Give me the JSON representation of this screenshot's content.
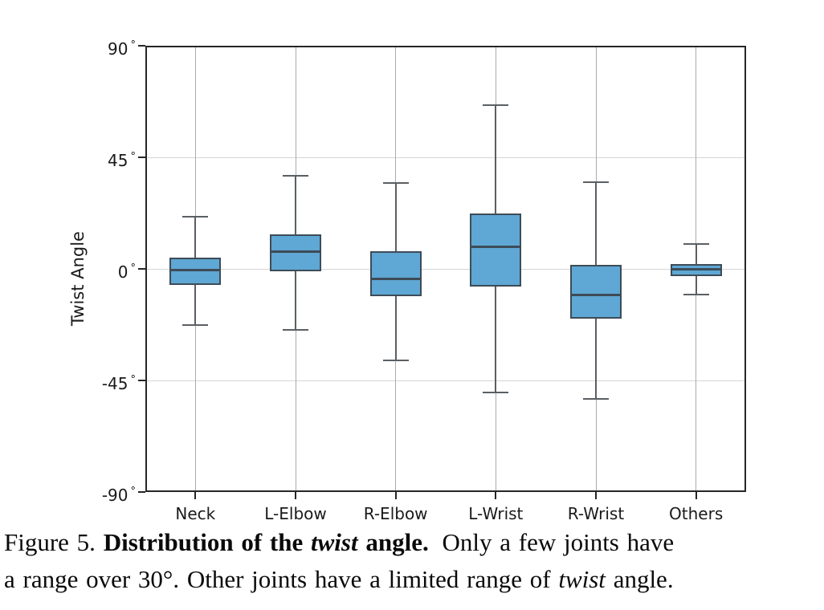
{
  "chart_data": {
    "type": "box",
    "title": "",
    "xlabel": "",
    "ylabel": "Twist Angle",
    "categories": [
      "Neck",
      "L-Elbow",
      "R-Elbow",
      "L-Wrist",
      "R-Wrist",
      "Others"
    ],
    "ylim": [
      -90,
      90
    ],
    "grid": true,
    "legend": false,
    "degree_symbol": "°",
    "yticks": [
      {
        "v": 90,
        "t": "90"
      },
      {
        "v": 45,
        "t": "45"
      },
      {
        "v": 0,
        "t": "0"
      },
      {
        "v": -45,
        "t": "-45"
      },
      {
        "v": -90,
        "t": "-90"
      }
    ],
    "series": [
      {
        "name": "Neck",
        "whislo": -22.5,
        "q1": -6.5,
        "med": -0.5,
        "q3": 4.5,
        "whishi": 21
      },
      {
        "name": "L-Elbow",
        "whislo": -24.5,
        "q1": -1,
        "med": 7,
        "q3": 14,
        "whishi": 37.5
      },
      {
        "name": "R-Elbow",
        "whislo": -37,
        "q1": -11,
        "med": -4,
        "q3": 7,
        "whishi": 34.5
      },
      {
        "name": "L-Wrist",
        "whislo": -50,
        "q1": -7,
        "med": 9,
        "q3": 22.5,
        "whishi": 66
      },
      {
        "name": "R-Wrist",
        "whislo": -52.5,
        "q1": -20,
        "med": -10.5,
        "q3": 1.5,
        "whishi": 35
      },
      {
        "name": "Others",
        "whislo": -10.5,
        "q1": -3,
        "med": 0,
        "q3": 2,
        "whishi": 10
      }
    ],
    "colors": {
      "box_fill": "#5fa7d4",
      "box_edge": "#3d4c57",
      "whisker": "#5a5f63",
      "grid_horizontal": "#d6d6d6",
      "grid_vertical": "#ababab",
      "axis": "#262626",
      "text": "#1a1a1a"
    }
  },
  "caption": {
    "line1_normal1": "Figure 5. ",
    "line1_bold1": "Distribution of the ",
    "line1_bolditalic": "twist",
    "line1_bold2": " angle.",
    "line1_normal2": " Only a few joints have",
    "line2_normal1": "a range over 30°. Other joints have a limited range of ",
    "line2_italic": "twist",
    "line2_normal2": " angle."
  }
}
